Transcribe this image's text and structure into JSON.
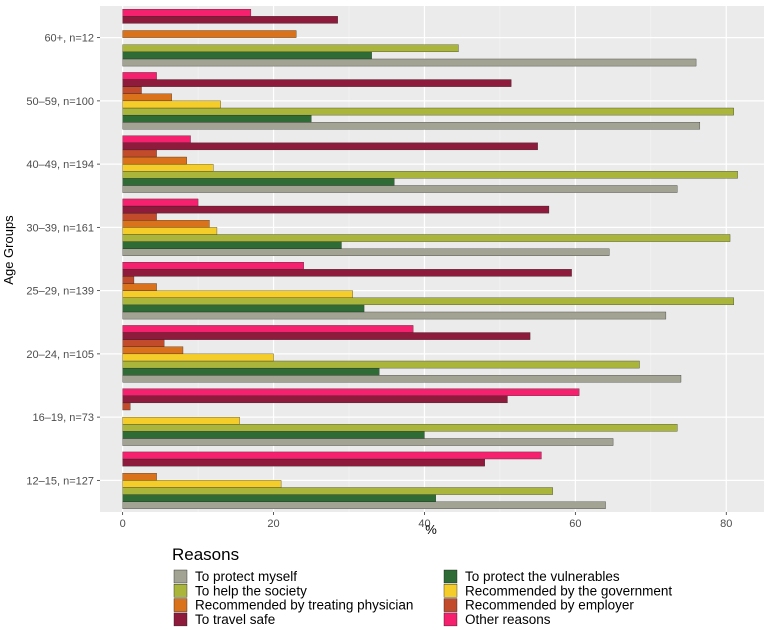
{
  "chart_data": {
    "type": "bar",
    "orientation": "horizontal",
    "xlabel": "%",
    "ylabel": "Age Groups",
    "xlim": [
      -3,
      85
    ],
    "xticks": [
      0,
      20,
      40,
      60,
      80
    ],
    "grid": true,
    "legend_title": "Reasons",
    "legend_position": "bottom",
    "categories": [
      "12–15, n=127",
      "16–19, n=73",
      "20–24, n=105",
      "25–29, n=139",
      "30–39, n=161",
      "40–49, n=194",
      "50–59, n=100",
      "60+, n=12"
    ],
    "series": [
      {
        "name": "To protect myself",
        "color": "#a3a393",
        "values": [
          64,
          65,
          74,
          72,
          64.5,
          73.5,
          76.5,
          76
        ]
      },
      {
        "name": "To protect the vulnerables",
        "color": "#2e6b35",
        "values": [
          41.5,
          40,
          34,
          32,
          29,
          36,
          25,
          33
        ]
      },
      {
        "name": "To help the society",
        "color": "#aab53c",
        "values": [
          57,
          73.5,
          68.5,
          81,
          80.5,
          81.5,
          81,
          44.5
        ]
      },
      {
        "name": "Recommended by the government",
        "color": "#f5cd2a",
        "values": [
          21,
          15.5,
          20,
          30.5,
          12.5,
          12,
          13,
          0
        ]
      },
      {
        "name": "Recommended by treating physician",
        "color": "#d9721a",
        "values": [
          4.5,
          0,
          8,
          4.5,
          11.5,
          8.5,
          6.5,
          23
        ]
      },
      {
        "name": "Recommended by employer",
        "color": "#c24b2b",
        "values": [
          0,
          1,
          5.5,
          1.5,
          4.5,
          4.5,
          2.5,
          0
        ]
      },
      {
        "name": "To travel safe",
        "color": "#8e1b3c",
        "values": [
          48,
          51,
          54,
          59.5,
          56.5,
          55,
          51.5,
          28.5
        ]
      },
      {
        "name": "Other reasons",
        "color": "#f5206e",
        "values": [
          55.5,
          60.5,
          38.5,
          24,
          10,
          9,
          4.5,
          17
        ]
      }
    ]
  }
}
